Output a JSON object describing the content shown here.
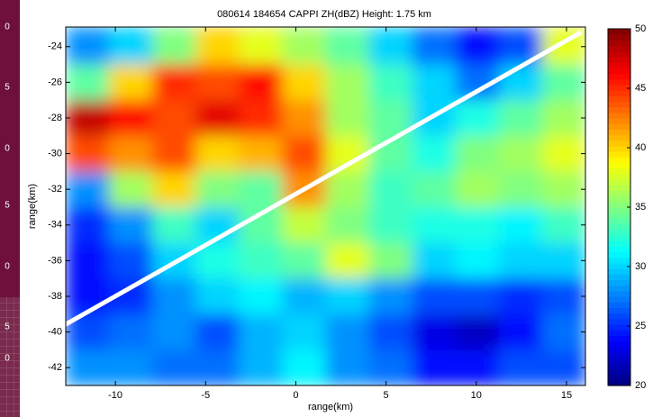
{
  "chart_data": {
    "type": "heatmap",
    "title": "080614 184654  CAPPI   ZH(dBZ)   Height: 1.75 km",
    "xlabel": "range(km)",
    "ylabel": "range(km)",
    "xlim": [
      -12.75,
      16.05
    ],
    "ylim": [
      -43,
      -22.9
    ],
    "xticks": [
      -10,
      -5,
      0,
      5,
      10,
      15
    ],
    "yticks": [
      -42,
      -40,
      -38,
      -36,
      -34,
      -32,
      -30,
      -28,
      -26,
      -24
    ],
    "x_edges": [
      -12.75,
      -10.35,
      -7.95,
      -5.55,
      -3.15,
      -0.75,
      1.65,
      4.05,
      6.45,
      8.85,
      11.25,
      13.65,
      16.05
    ],
    "y_edges": [
      -22.9,
      -25,
      -27,
      -29,
      -31,
      -33,
      -35,
      -37,
      -39,
      -41,
      -43
    ],
    "z": [
      [
        28,
        30,
        35,
        40,
        38,
        36,
        34,
        30,
        27,
        24,
        26,
        38
      ],
      [
        34,
        40,
        45,
        44,
        46,
        40,
        36,
        33,
        30,
        27,
        30,
        34
      ],
      [
        48,
        46,
        44,
        47,
        45,
        42,
        36,
        34,
        30,
        32,
        34,
        36
      ],
      [
        44,
        42,
        44,
        40,
        41,
        44,
        38,
        34,
        32,
        35,
        36,
        38
      ],
      [
        28,
        36,
        40,
        35,
        34,
        42,
        36,
        33,
        34,
        36,
        35,
        36
      ],
      [
        25,
        28,
        33,
        30,
        34,
        37,
        35,
        33,
        32,
        32,
        31,
        33
      ],
      [
        24,
        26,
        30,
        32,
        33,
        34,
        38,
        35,
        30,
        31,
        30,
        30
      ],
      [
        24,
        25,
        28,
        30,
        31,
        29,
        30,
        28,
        26,
        26,
        25,
        26
      ],
      [
        26,
        27,
        28,
        26,
        29,
        30,
        28,
        26,
        23,
        22,
        24,
        27
      ],
      [
        28,
        28,
        27,
        27,
        29,
        31,
        28,
        27,
        24,
        24,
        26,
        26
      ]
    ],
    "colormap": "jet",
    "colorbar": {
      "clim": [
        20,
        50
      ],
      "ticks": [
        20,
        25,
        30,
        35,
        40,
        45,
        50
      ]
    },
    "line": {
      "color": "#ffffff",
      "x": [
        -12.8,
        15.8
      ],
      "y": [
        -39.6,
        -23.2
      ]
    }
  },
  "side_panel": {
    "labels": [
      "0",
      "5",
      "0",
      "5",
      "0",
      "5",
      "0"
    ]
  }
}
